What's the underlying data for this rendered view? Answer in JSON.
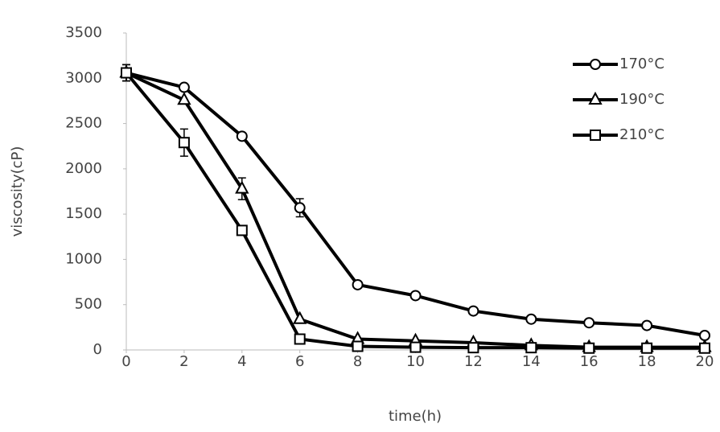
{
  "chart_data": {
    "type": "line",
    "x_label": "time(h)",
    "y_label": "viscosity(cP)",
    "x": [
      0,
      2,
      4,
      6,
      8,
      10,
      12,
      14,
      16,
      18,
      20
    ],
    "series": [
      {
        "name": "170°C",
        "color": "#000000",
        "marker": "circle",
        "values": [
          3060,
          2900,
          2360,
          1570,
          720,
          600,
          430,
          340,
          300,
          270,
          160
        ],
        "errors": [
          90,
          0,
          0,
          100,
          0,
          0,
          0,
          0,
          0,
          0,
          0
        ]
      },
      {
        "name": "190°C",
        "color": "#000000",
        "marker": "triangle",
        "values": [
          3060,
          2760,
          1780,
          340,
          120,
          100,
          80,
          50,
          30,
          30,
          30
        ],
        "errors": [
          90,
          0,
          120,
          0,
          0,
          0,
          0,
          0,
          0,
          0,
          0
        ]
      },
      {
        "name": "210°C",
        "color": "#000000",
        "marker": "square",
        "values": [
          3060,
          2290,
          1320,
          120,
          40,
          30,
          25,
          25,
          20,
          20,
          20
        ],
        "errors": [
          90,
          150,
          0,
          0,
          0,
          0,
          0,
          0,
          0,
          0,
          0
        ]
      }
    ],
    "xlim": [
      0,
      20
    ],
    "xticks": [
      0,
      2,
      4,
      6,
      8,
      10,
      12,
      14,
      16,
      18,
      20
    ],
    "ylim": [
      0,
      3500
    ],
    "yticks": [
      0,
      500,
      1000,
      1500,
      2000,
      2500,
      3000,
      3500
    ],
    "grid": false,
    "legend": "top-right"
  }
}
